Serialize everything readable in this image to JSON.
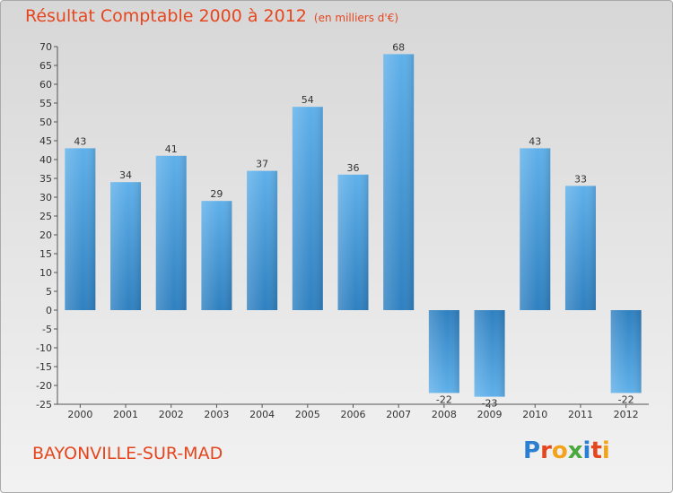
{
  "title": "Résultat Comptable 2000 à 2012",
  "subtitle": "(en milliers d'€)",
  "commune": "BAYONVILLE-SUR-MAD",
  "logo": {
    "letters": [
      "P",
      "r",
      "o",
      "x",
      "i",
      "t",
      "i"
    ],
    "colors": [
      "#2a7fd0",
      "#e6461e",
      "#f5a21b",
      "#4aa83c",
      "#2a7fd0",
      "#e6461e",
      "#f5a21b"
    ]
  },
  "chart_data": {
    "type": "bar",
    "title": "Résultat Comptable 2000 à 2012",
    "ylabel": "en milliers d'€",
    "categories": [
      "2000",
      "2001",
      "2002",
      "2003",
      "2004",
      "2005",
      "2006",
      "2007",
      "2008",
      "2009",
      "2010",
      "2011",
      "2012"
    ],
    "values": [
      43,
      34,
      41,
      29,
      37,
      54,
      36,
      68,
      -22,
      -23,
      43,
      33,
      -22
    ],
    "value_labels": [
      "43",
      "34",
      "41",
      "29",
      "37",
      "54",
      "36",
      "68",
      "-22",
      "-23",
      "43",
      "33",
      "-22"
    ],
    "ylim": [
      -25,
      70
    ],
    "yticks": [
      -25,
      -20,
      -15,
      -10,
      -5,
      0,
      5,
      10,
      15,
      20,
      25,
      30,
      35,
      40,
      45,
      50,
      55,
      60,
      65,
      70
    ],
    "grid": false,
    "bar_color_light": "#5fb0ea",
    "bar_color_dark": "#2f80c0"
  }
}
